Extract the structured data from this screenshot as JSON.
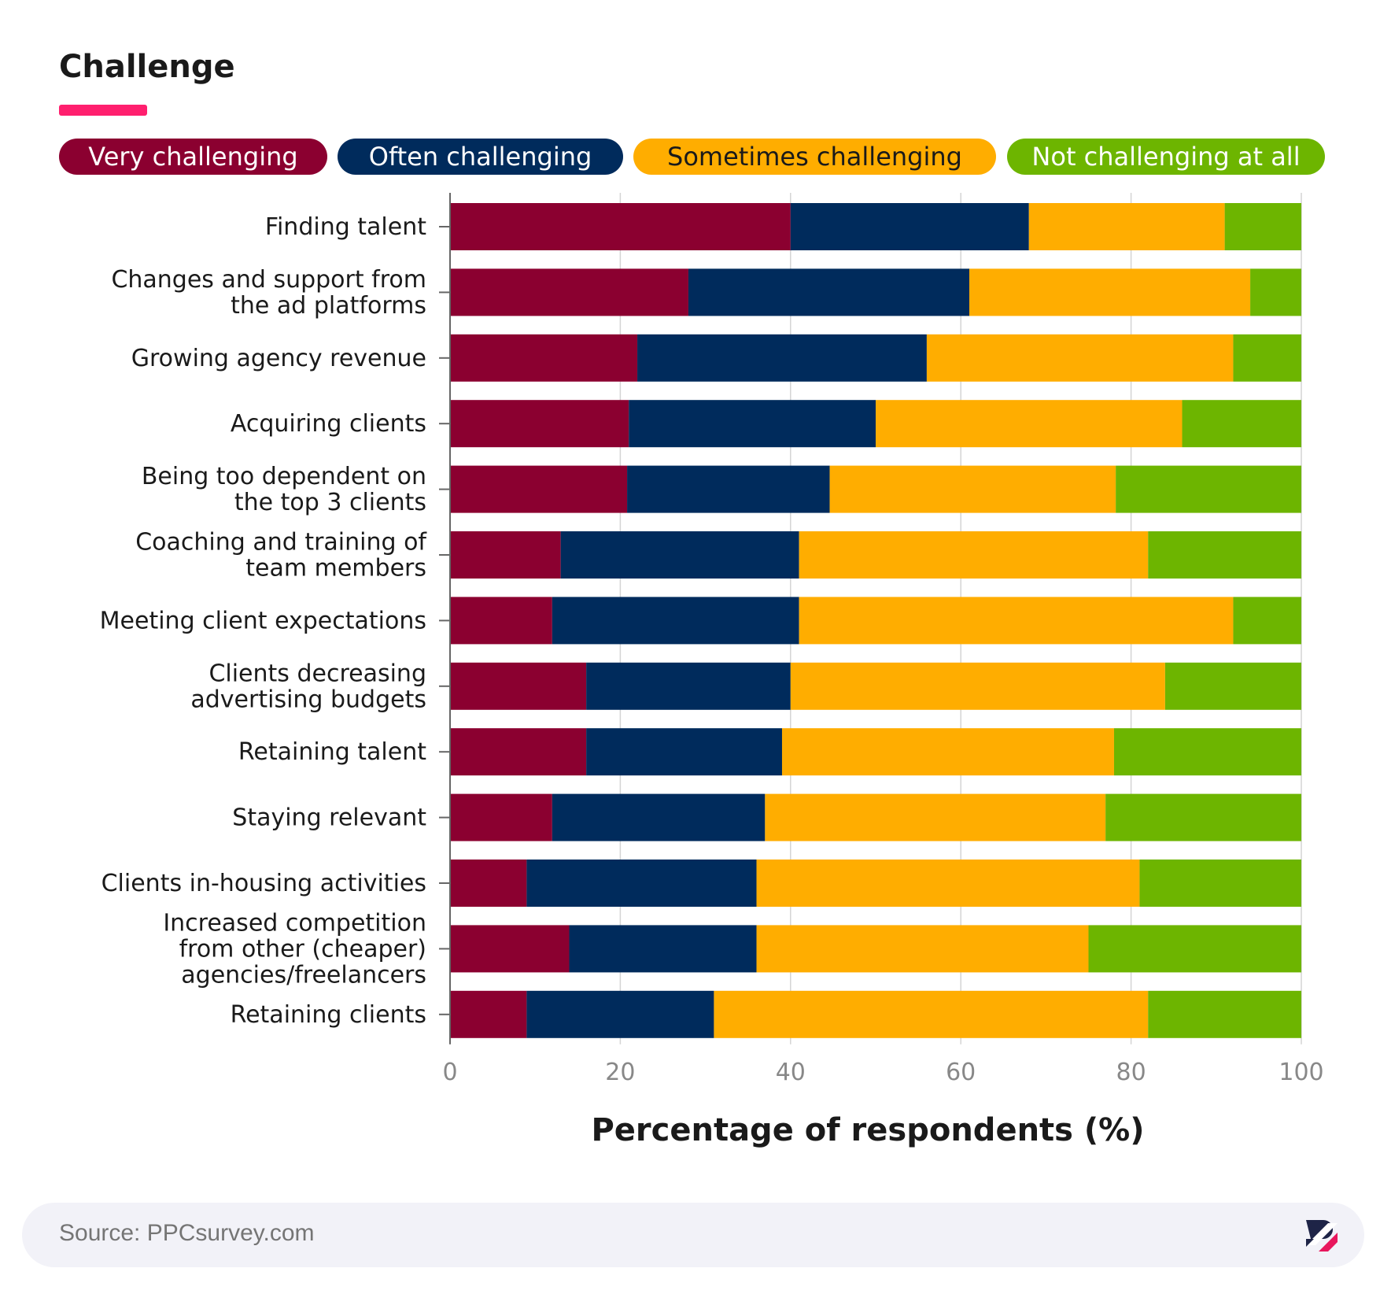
{
  "chart_data": {
    "type": "bar",
    "orientation": "horizontal",
    "stacked": true,
    "title": "Challenge",
    "xlabel": "Percentage of respondents (%)",
    "ylabel": "",
    "xlim": [
      0,
      100
    ],
    "x_ticks": [
      0,
      20,
      40,
      60,
      80,
      100
    ],
    "grid": true,
    "legend_position": "top",
    "categories": [
      "Finding talent",
      "Changes and support from the ad platforms",
      "Growing agency revenue",
      "Acquiring clients",
      "Being too dependent on the top 3 clients",
      "Coaching and training of team members",
      "Meeting client expectations",
      "Clients decreasing advertising budgets",
      "Retaining talent",
      "Staying relevant",
      "Clients in-housing activities",
      "Increased competition from other (cheaper) agencies/freelancers",
      "Retaining clients"
    ],
    "category_lines": [
      [
        "Finding talent"
      ],
      [
        "Changes and support from",
        "the ad platforms"
      ],
      [
        "Growing agency revenue"
      ],
      [
        "Acquiring clients"
      ],
      [
        "Being too dependent on",
        "the top 3 clients"
      ],
      [
        "Coaching and training of",
        "team members"
      ],
      [
        "Meeting client expectations"
      ],
      [
        "Clients decreasing",
        "advertising budgets"
      ],
      [
        "Retaining talent"
      ],
      [
        "Staying relevant"
      ],
      [
        "Clients in-housing activities"
      ],
      [
        "Increased competition",
        "from other (cheaper)",
        "agencies/freelancers"
      ],
      [
        "Retaining clients"
      ]
    ],
    "series": [
      {
        "name": "Very challenging",
        "color": "#8b0030",
        "values": [
          40,
          28,
          22,
          21,
          20.8,
          13,
          12,
          16,
          16,
          12,
          9,
          14,
          9
        ]
      },
      {
        "name": "Often challenging",
        "color": "#002b5c",
        "values": [
          28,
          33,
          34,
          29,
          23.8,
          28,
          29,
          24,
          23,
          25,
          27,
          22,
          22
        ]
      },
      {
        "name": "Sometimes challenging",
        "color": "#ffad00",
        "values": [
          23,
          33,
          36,
          36,
          33.6,
          41,
          51,
          44,
          39,
          40,
          45,
          39,
          51
        ]
      },
      {
        "name": "Not challenging at all",
        "color": "#6db500",
        "values": [
          9,
          6,
          8,
          14,
          21.8,
          18,
          8,
          16,
          22,
          23,
          19,
          25,
          18
        ]
      }
    ]
  },
  "accent_color": "#ff1f6e",
  "source": "Source: PPCsurvey.com",
  "logo_icon": "brand-logo-icon"
}
